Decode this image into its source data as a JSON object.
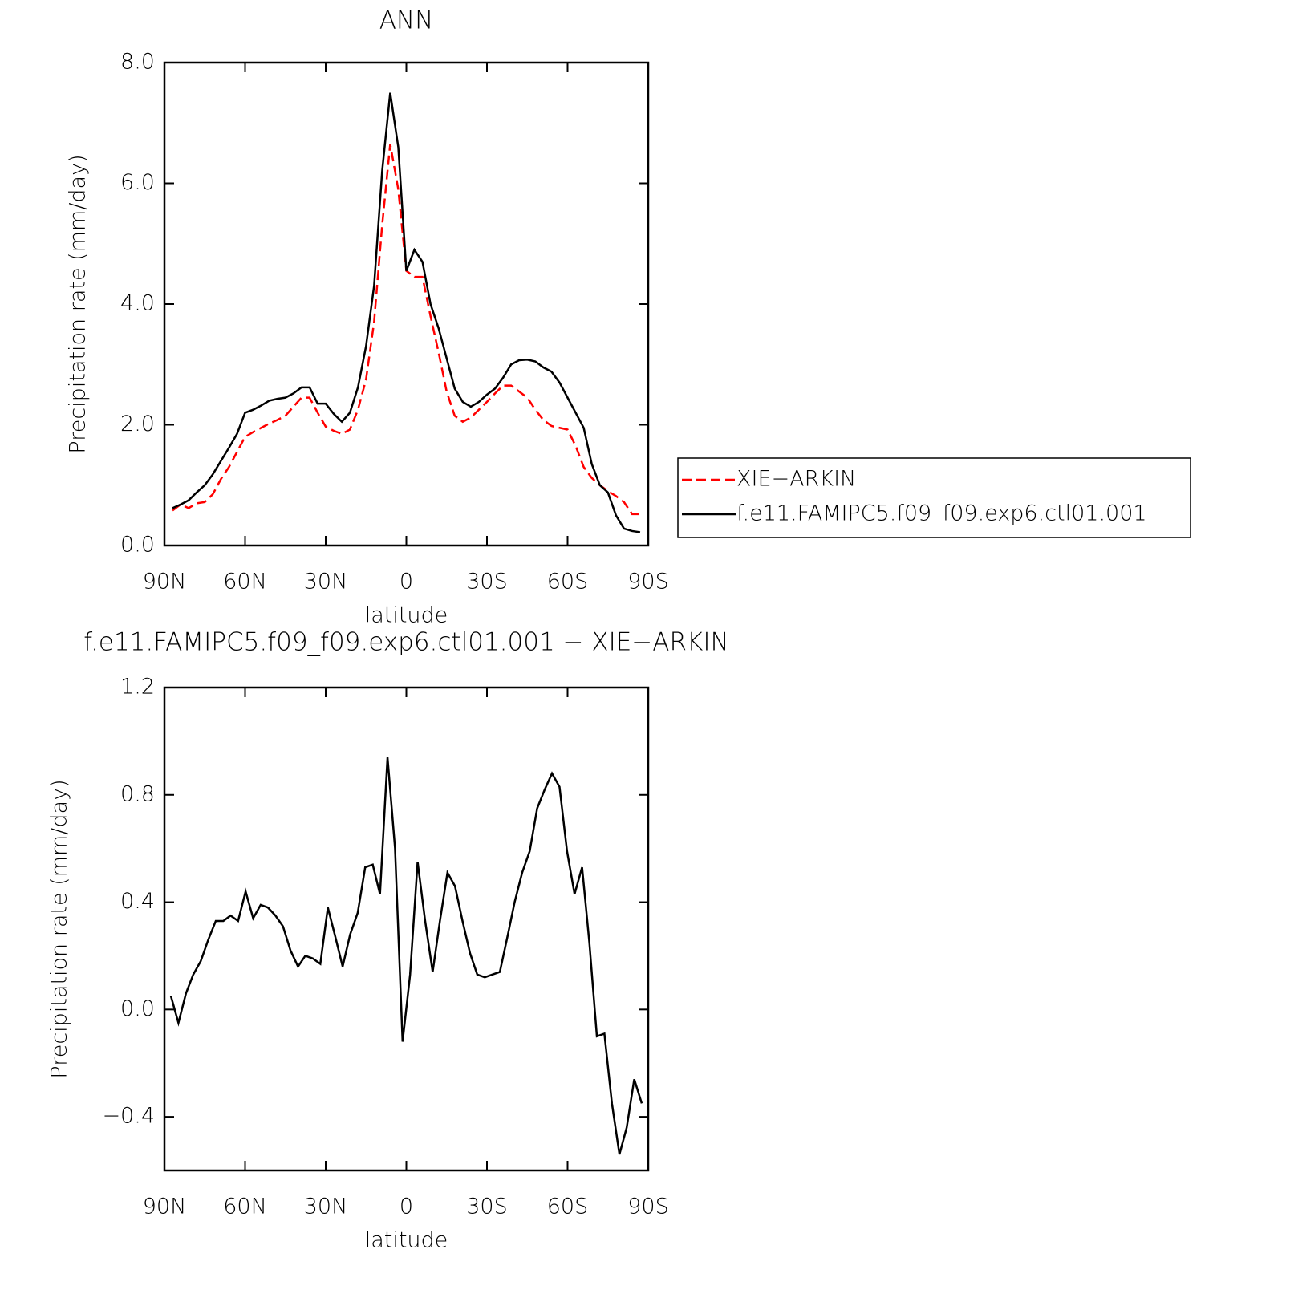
{
  "chart_data": [
    {
      "type": "line",
      "title": "ANN",
      "xlabel": "latitude",
      "ylabel": "Precipitation rate (mm/day)",
      "xlim": [
        90,
        -90
      ],
      "xticks": [
        {
          "value": 90,
          "label": "90N"
        },
        {
          "value": 60,
          "label": "60N"
        },
        {
          "value": 30,
          "label": "30N"
        },
        0,
        {
          "value": -30,
          "label": "30S"
        },
        {
          "value": -60,
          "label": "60S"
        },
        {
          "value": -90,
          "label": "90S"
        }
      ],
      "ylim": [
        0,
        8
      ],
      "yticks": [
        {
          "value": 0,
          "label": "0.0"
        },
        {
          "value": 2,
          "label": "2.0"
        },
        {
          "value": 4,
          "label": "4.0"
        },
        {
          "value": 6,
          "label": "6.0"
        },
        {
          "value": 8,
          "label": "8.0"
        }
      ],
      "legend": "right",
      "x": [
        87,
        84,
        81,
        78,
        75,
        72,
        69,
        66,
        63,
        60,
        57,
        54,
        51,
        48,
        45,
        42,
        39,
        36,
        33,
        30,
        27,
        24,
        21,
        18,
        15,
        12,
        9,
        6,
        3,
        0,
        -3,
        -6,
        -9,
        -12,
        -15,
        -18,
        -21,
        -24,
        -27,
        -30,
        -33,
        -36,
        -39,
        -42,
        -45,
        -48,
        -51,
        -54,
        -57,
        -60,
        -63,
        -66,
        -69,
        -72,
        -75,
        -78,
        -81,
        -84,
        -87
      ],
      "series": [
        {
          "name": "XIE−ARKIN",
          "color": "#ff0000",
          "dashed": true,
          "values": [
            0.58,
            0.68,
            0.62,
            0.7,
            0.72,
            0.85,
            1.1,
            1.3,
            1.55,
            1.8,
            1.88,
            1.95,
            2.02,
            2.08,
            2.15,
            2.3,
            2.45,
            2.45,
            2.2,
            1.97,
            1.9,
            1.85,
            1.92,
            2.25,
            2.75,
            3.7,
            5.3,
            6.65,
            5.9,
            4.55,
            4.45,
            4.45,
            3.8,
            3.2,
            2.55,
            2.15,
            2.05,
            2.12,
            2.25,
            2.38,
            2.52,
            2.65,
            2.65,
            2.55,
            2.45,
            2.25,
            2.08,
            1.98,
            1.95,
            1.92,
            1.65,
            1.3,
            1.12,
            1.0,
            0.9,
            0.82,
            0.72,
            0.52,
            0.52
          ]
        },
        {
          "name": "f.e11.FAMIPC5.f09_f09.exp6.ctl01.001",
          "color": "#000000",
          "dashed": false,
          "values": [
            0.62,
            0.68,
            0.75,
            0.88,
            1.0,
            1.18,
            1.4,
            1.62,
            1.85,
            2.2,
            2.25,
            2.32,
            2.4,
            2.43,
            2.45,
            2.52,
            2.62,
            2.62,
            2.35,
            2.35,
            2.18,
            2.05,
            2.2,
            2.62,
            3.3,
            4.3,
            6.2,
            7.5,
            6.6,
            4.55,
            4.9,
            4.7,
            4.0,
            3.6,
            3.1,
            2.6,
            2.38,
            2.3,
            2.38,
            2.5,
            2.6,
            2.78,
            3.0,
            3.07,
            3.08,
            3.05,
            2.95,
            2.88,
            2.7,
            2.45,
            2.2,
            1.95,
            1.35,
            1.0,
            0.88,
            0.5,
            0.28,
            0.24,
            0.22
          ]
        }
      ]
    },
    {
      "type": "line",
      "title": "f.e11.FAMIPC5.f09_f09.exp6.ctl01.001 − XIE−ARKIN",
      "xlabel": "latitude",
      "ylabel": "Precipitation rate (mm/day)",
      "xlim": [
        90,
        -90
      ],
      "xticks": [
        {
          "value": 90,
          "label": "90N"
        },
        {
          "value": 60,
          "label": "60N"
        },
        {
          "value": 30,
          "label": "30N"
        },
        0,
        {
          "value": -30,
          "label": "30S"
        },
        {
          "value": -60,
          "label": "60S"
        },
        {
          "value": -90,
          "label": "90S"
        }
      ],
      "ylim": [
        -0.6,
        1.2
      ],
      "yticks": [
        {
          "value": -0.4,
          "label": "−0.4"
        },
        {
          "value": 0,
          "label": "0.0"
        },
        {
          "value": 0.4,
          "label": "0.4"
        },
        {
          "value": 0.8,
          "label": "0.8"
        },
        {
          "value": 1.2,
          "label": "1.2"
        }
      ],
      "color": "#000000",
      "x": [
        87.6,
        84.8,
        82.0,
        79.3,
        76.5,
        73.7,
        70.9,
        68.1,
        65.4,
        62.6,
        59.8,
        57.0,
        54.2,
        51.5,
        48.7,
        45.9,
        43.1,
        40.3,
        37.6,
        34.8,
        32.0,
        29.2,
        26.4,
        23.7,
        20.9,
        18.1,
        15.3,
        12.5,
        9.8,
        7.0,
        4.2,
        1.4,
        -1.4,
        -4.2,
        -7.0,
        -9.8,
        -12.5,
        -15.3,
        -18.1,
        -20.9,
        -23.7,
        -26.4,
        -29.2,
        -32.0,
        -34.8,
        -37.6,
        -40.3,
        -43.1,
        -45.9,
        -48.7,
        -51.5,
        -54.2,
        -57.0,
        -59.8,
        -62.6,
        -65.4,
        -68.1,
        -70.9,
        -73.7,
        -76.5,
        -79.3,
        -82.0,
        -84.8,
        -87.6
      ],
      "values": [
        0.05,
        -0.05,
        0.06,
        0.13,
        0.18,
        0.26,
        0.33,
        0.33,
        0.35,
        0.33,
        0.44,
        0.34,
        0.39,
        0.38,
        0.35,
        0.31,
        0.22,
        0.16,
        0.2,
        0.19,
        0.17,
        0.38,
        0.27,
        0.16,
        0.28,
        0.36,
        0.53,
        0.54,
        0.43,
        0.94,
        0.6,
        -0.12,
        0.13,
        0.55,
        0.33,
        0.14,
        0.33,
        0.51,
        0.46,
        0.33,
        0.21,
        0.13,
        0.12,
        0.13,
        0.14,
        0.27,
        0.4,
        0.51,
        0.59,
        0.75,
        0.82,
        0.88,
        0.83,
        0.59,
        0.43,
        0.53,
        0.25,
        -0.1,
        -0.09,
        -0.35,
        -0.54,
        -0.44,
        -0.26,
        -0.35
      ]
    }
  ]
}
